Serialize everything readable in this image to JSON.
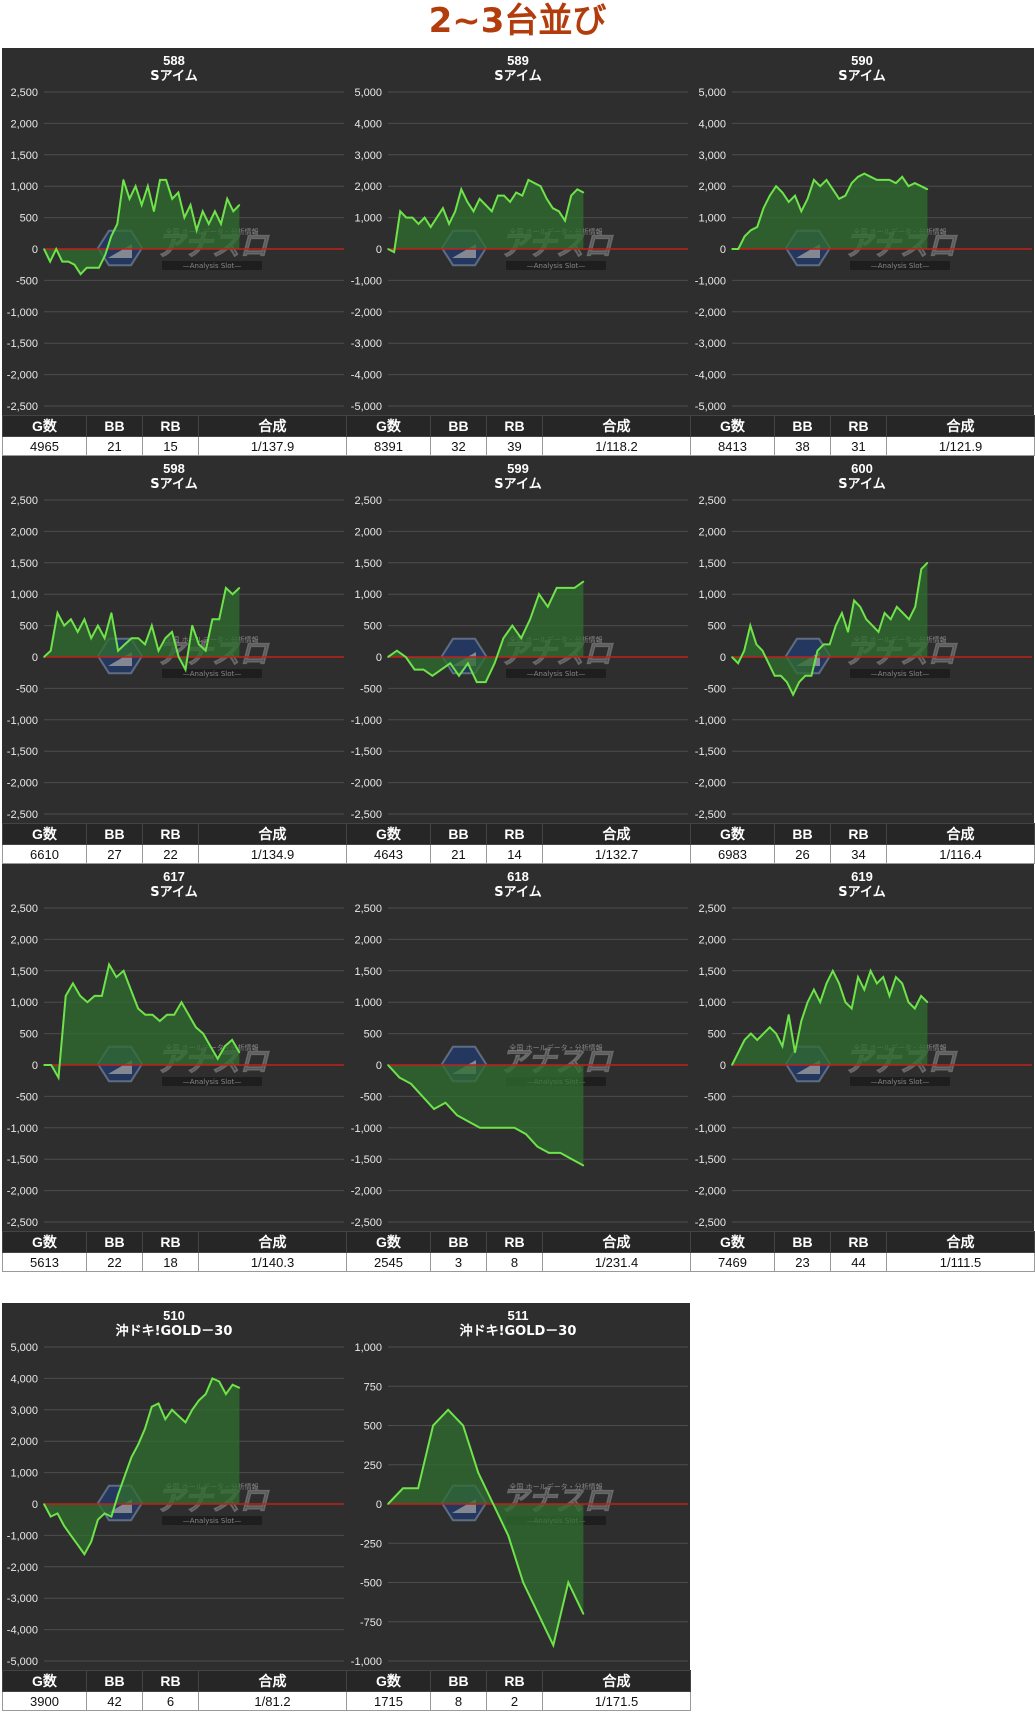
{
  "page": {
    "title": "2~3台並び"
  },
  "table_headers": {
    "games": "G数",
    "bb": "BB",
    "rb": "RB",
    "combined": "合成"
  },
  "colors": {
    "panel_bg": "#2e2e2e",
    "line": "#6ee34a",
    "fill": "#2f6e2f",
    "zero_line": "#c0201c",
    "grid": "#4d4d4d",
    "title": "#b23c0c"
  },
  "watermark": {
    "name": "アナスロ",
    "sub": "—Analysis Slot—",
    "top": "全国 ホールデータ・分析情報",
    "icon": "hexagon-logo-icon"
  },
  "chart_data": [
    {
      "type": "line",
      "title": "588",
      "subtitle": "Sアイム",
      "ylim": [
        -2500,
        2500
      ],
      "yticks": [
        "2,500",
        "2,000",
        "1,500",
        "1,000",
        "500",
        "0",
        "-500",
        "-1,000",
        "-1,500",
        "-2,000",
        "-2,500"
      ],
      "stats": {
        "games": "4965",
        "bb": "21",
        "rb": "15",
        "combined": "1/137.9"
      },
      "values": [
        0,
        -200,
        0,
        -200,
        -200,
        -250,
        -400,
        -300,
        -300,
        -300,
        -100,
        200,
        400,
        1100,
        800,
        1000,
        700,
        1000,
        600,
        1100,
        1100,
        800,
        900,
        500,
        700,
        300,
        600,
        400,
        600,
        400,
        800,
        600,
        700
      ]
    },
    {
      "type": "line",
      "title": "589",
      "subtitle": "Sアイム",
      "ylim": [
        -5000,
        5000
      ],
      "yticks": [
        "5,000",
        "4,000",
        "3,000",
        "2,000",
        "1,000",
        "0",
        "-1,000",
        "-2,000",
        "-3,000",
        "-4,000",
        "-5,000"
      ],
      "stats": {
        "games": "8391",
        "bb": "32",
        "rb": "39",
        "combined": "1/118.2"
      },
      "values": [
        0,
        -100,
        1200,
        1000,
        1000,
        800,
        1000,
        700,
        1000,
        1300,
        800,
        1200,
        1900,
        1500,
        1200,
        1600,
        1400,
        1200,
        1700,
        1700,
        1500,
        1800,
        1700,
        2200,
        2100,
        2000,
        1600,
        1300,
        1200,
        900,
        1700,
        1900,
        1800
      ]
    },
    {
      "type": "line",
      "title": "590",
      "subtitle": "Sアイム",
      "ylim": [
        -5000,
        5000
      ],
      "yticks": [
        "5,000",
        "4,000",
        "3,000",
        "2,000",
        "1,000",
        "0",
        "-1,000",
        "-2,000",
        "-3,000",
        "-4,000",
        "-5,000"
      ],
      "stats": {
        "games": "8413",
        "bb": "38",
        "rb": "31",
        "combined": "1/121.9"
      },
      "values": [
        0,
        0,
        400,
        600,
        700,
        1300,
        1700,
        2000,
        1800,
        1500,
        1700,
        1200,
        1600,
        2200,
        2000,
        2200,
        1900,
        1600,
        1700,
        2100,
        2300,
        2400,
        2300,
        2200,
        2200,
        2200,
        2100,
        2300,
        2000,
        2100,
        2000,
        1900
      ]
    },
    {
      "type": "line",
      "title": "598",
      "subtitle": "Sアイム",
      "ylim": [
        -2500,
        2500
      ],
      "yticks": [
        "2,500",
        "2,000",
        "1,500",
        "1,000",
        "500",
        "0",
        "-500",
        "-1,000",
        "-1,500",
        "-2,000",
        "-2,500"
      ],
      "stats": {
        "games": "6610",
        "bb": "27",
        "rb": "22",
        "combined": "1/134.9"
      },
      "values": [
        0,
        100,
        700,
        500,
        600,
        400,
        600,
        300,
        500,
        300,
        700,
        100,
        200,
        300,
        300,
        200,
        500,
        100,
        300,
        400,
        0,
        -200,
        500,
        200,
        100,
        600,
        600,
        1100,
        1000,
        1100
      ]
    },
    {
      "type": "line",
      "title": "599",
      "subtitle": "Sアイム",
      "ylim": [
        -2500,
        2500
      ],
      "yticks": [
        "2,500",
        "2,000",
        "1,500",
        "1,000",
        "500",
        "0",
        "-500",
        "-1,000",
        "-1,500",
        "-2,000",
        "-2,500"
      ],
      "stats": {
        "games": "4643",
        "bb": "21",
        "rb": "14",
        "combined": "1/132.7"
      },
      "values": [
        0,
        100,
        0,
        -200,
        -200,
        -300,
        -200,
        -100,
        -300,
        -100,
        -400,
        -400,
        -100,
        300,
        500,
        300,
        600,
        1000,
        800,
        1100,
        1100,
        1100,
        1200
      ]
    },
    {
      "type": "line",
      "title": "600",
      "subtitle": "Sアイム",
      "ylim": [
        -2500,
        2500
      ],
      "yticks": [
        "2,500",
        "2,000",
        "1,500",
        "1,000",
        "500",
        "0",
        "-500",
        "-1,000",
        "-1,500",
        "-2,000",
        "-2,500"
      ],
      "stats": {
        "games": "6983",
        "bb": "26",
        "rb": "34",
        "combined": "1/116.4"
      },
      "values": [
        0,
        -100,
        100,
        500,
        200,
        100,
        -100,
        -300,
        -300,
        -400,
        -600,
        -400,
        -300,
        -300,
        100,
        200,
        200,
        500,
        700,
        400,
        900,
        800,
        600,
        500,
        400,
        700,
        600,
        800,
        700,
        600,
        800,
        1400,
        1500
      ]
    },
    {
      "type": "line",
      "title": "617",
      "subtitle": "Sアイム",
      "ylim": [
        -2500,
        2500
      ],
      "yticks": [
        "2,500",
        "2,000",
        "1,500",
        "1,000",
        "500",
        "0",
        "-500",
        "-1,000",
        "-1,500",
        "-2,000",
        "-2,500"
      ],
      "stats": {
        "games": "5613",
        "bb": "22",
        "rb": "18",
        "combined": "1/140.3"
      },
      "values": [
        0,
        0,
        -200,
        1100,
        1300,
        1100,
        1000,
        1100,
        1100,
        1600,
        1400,
        1500,
        1200,
        900,
        800,
        800,
        700,
        800,
        800,
        1000,
        800,
        600,
        500,
        300,
        100,
        300,
        400,
        200
      ]
    },
    {
      "type": "line",
      "title": "618",
      "subtitle": "Sアイム",
      "ylim": [
        -2500,
        2500
      ],
      "yticks": [
        "2,500",
        "2,000",
        "1,500",
        "1,000",
        "500",
        "0",
        "-500",
        "-1,000",
        "-1,500",
        "-2,000",
        "-2,500"
      ],
      "stats": {
        "games": "2545",
        "bb": "3",
        "rb": "8",
        "combined": "1/231.4"
      },
      "values": [
        0,
        -200,
        -300,
        -500,
        -700,
        -600,
        -800,
        -900,
        -1000,
        -1000,
        -1000,
        -1000,
        -1100,
        -1300,
        -1400,
        -1400,
        -1500,
        -1600
      ]
    },
    {
      "type": "line",
      "title": "619",
      "subtitle": "Sアイム",
      "ylim": [
        -2500,
        2500
      ],
      "yticks": [
        "2,500",
        "2,000",
        "1,500",
        "1,000",
        "500",
        "0",
        "-500",
        "-1,000",
        "-1,500",
        "-2,000",
        "-2,500"
      ],
      "stats": {
        "games": "7469",
        "bb": "23",
        "rb": "44",
        "combined": "1/111.5"
      },
      "values": [
        0,
        200,
        400,
        500,
        400,
        500,
        600,
        500,
        300,
        800,
        200,
        700,
        1000,
        1200,
        1000,
        1300,
        1500,
        1300,
        1000,
        900,
        1400,
        1200,
        1500,
        1300,
        1400,
        1100,
        1400,
        1300,
        1000,
        900,
        1100,
        1000
      ]
    },
    {
      "type": "line",
      "title": "510",
      "subtitle": "沖ドキ!GOLD－30",
      "ylim": [
        -5000,
        5000
      ],
      "yticks": [
        "5,000",
        "4,000",
        "3,000",
        "2,000",
        "1,000",
        "0",
        "-1,000",
        "-2,000",
        "-3,000",
        "-4,000",
        "-5,000"
      ],
      "stats": {
        "games": "3900",
        "bb": "42",
        "rb": "6",
        "combined": "1/81.2"
      },
      "values": [
        0,
        -400,
        -300,
        -700,
        -1000,
        -1300,
        -1600,
        -1200,
        -500,
        -300,
        -400,
        300,
        900,
        1500,
        1900,
        2400,
        3100,
        3200,
        2700,
        3000,
        2800,
        2600,
        3000,
        3300,
        3500,
        4000,
        3900,
        3500,
        3800,
        3700
      ]
    },
    {
      "type": "line",
      "title": "511",
      "subtitle": "沖ドキ!GOLD－30",
      "ylim": [
        -1000,
        1000
      ],
      "yticks": [
        "1,000",
        "750",
        "500",
        "250",
        "0",
        "-250",
        "-500",
        "-750",
        "-1,000"
      ],
      "stats": {
        "games": "1715",
        "bb": "8",
        "rb": "2",
        "combined": "1/171.5"
      },
      "values": [
        0,
        100,
        100,
        500,
        600,
        500,
        200,
        0,
        -200,
        -500,
        -700,
        -900,
        -500,
        -700
      ]
    }
  ]
}
